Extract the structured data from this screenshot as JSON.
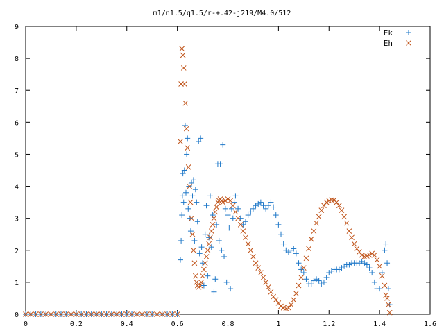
{
  "chart_data": {
    "type": "scatter",
    "title": "m1/n1.5/q1.5/r-+.42-j219/M4.0/512",
    "xlabel": "",
    "ylabel": "",
    "xlim": [
      0,
      1.6
    ],
    "ylim": [
      0,
      9
    ],
    "xticks": [
      "0",
      "0.2",
      "0.4",
      "0.6",
      "0.8",
      "1",
      "1.2",
      "1.4",
      "1.6"
    ],
    "yticks": [
      "0",
      "1",
      "2",
      "3",
      "4",
      "5",
      "6",
      "7",
      "8",
      "9"
    ],
    "grid": false,
    "legend_position": "top-right",
    "series": [
      {
        "name": "Ek",
        "marker": "plus",
        "color": "#1f78c8",
        "points": [
          [
            0.0,
            0
          ],
          [
            0.02,
            0
          ],
          [
            0.04,
            0
          ],
          [
            0.06,
            0
          ],
          [
            0.08,
            0
          ],
          [
            0.1,
            0
          ],
          [
            0.12,
            0
          ],
          [
            0.14,
            0
          ],
          [
            0.16,
            0
          ],
          [
            0.18,
            0
          ],
          [
            0.2,
            0
          ],
          [
            0.22,
            0
          ],
          [
            0.24,
            0
          ],
          [
            0.26,
            0
          ],
          [
            0.28,
            0
          ],
          [
            0.3,
            0
          ],
          [
            0.32,
            0
          ],
          [
            0.34,
            0
          ],
          [
            0.36,
            0
          ],
          [
            0.38,
            0
          ],
          [
            0.4,
            0
          ],
          [
            0.42,
            0
          ],
          [
            0.44,
            0
          ],
          [
            0.46,
            0
          ],
          [
            0.48,
            0
          ],
          [
            0.5,
            0
          ],
          [
            0.52,
            0
          ],
          [
            0.54,
            0
          ],
          [
            0.56,
            0
          ],
          [
            0.58,
            0
          ],
          [
            0.6,
            0
          ],
          [
            0.612,
            1.7
          ],
          [
            0.615,
            2.3
          ],
          [
            0.618,
            3.1
          ],
          [
            0.62,
            3.7
          ],
          [
            0.622,
            4.4
          ],
          [
            0.625,
            3.5
          ],
          [
            0.628,
            4.5
          ],
          [
            0.631,
            5.9
          ],
          [
            0.634,
            3.8
          ],
          [
            0.637,
            5.0
          ],
          [
            0.64,
            5.5
          ],
          [
            0.643,
            3.3
          ],
          [
            0.646,
            4.0
          ],
          [
            0.65,
            3.0
          ],
          [
            0.653,
            2.6
          ],
          [
            0.656,
            4.1
          ],
          [
            0.66,
            3.7
          ],
          [
            0.664,
            4.2
          ],
          [
            0.668,
            2.3
          ],
          [
            0.672,
            3.9
          ],
          [
            0.676,
            3.5
          ],
          [
            0.68,
            2.9
          ],
          [
            0.684,
            5.4
          ],
          [
            0.688,
            1.9
          ],
          [
            0.692,
            5.5
          ],
          [
            0.696,
            2.1
          ],
          [
            0.7,
            1.6
          ],
          [
            0.705,
            0.9
          ],
          [
            0.71,
            2.5
          ],
          [
            0.715,
            3.4
          ],
          [
            0.72,
            1.2
          ],
          [
            0.725,
            2.4
          ],
          [
            0.73,
            3.7
          ],
          [
            0.735,
            2.1
          ],
          [
            0.74,
            3.1
          ],
          [
            0.745,
            0.7
          ],
          [
            0.75,
            1.1
          ],
          [
            0.755,
            2.8
          ],
          [
            0.76,
            4.7
          ],
          [
            0.765,
            2.3
          ],
          [
            0.77,
            4.7
          ],
          [
            0.775,
            2.0
          ],
          [
            0.78,
            5.3
          ],
          [
            0.785,
            1.8
          ],
          [
            0.79,
            3.3
          ],
          [
            0.795,
            1.0
          ],
          [
            0.8,
            3.1
          ],
          [
            0.805,
            2.7
          ],
          [
            0.81,
            0.8
          ],
          [
            0.815,
            3.3
          ],
          [
            0.82,
            3.0
          ],
          [
            0.825,
            3.5
          ],
          [
            0.83,
            3.7
          ],
          [
            0.84,
            3.3
          ],
          [
            0.85,
            3.0
          ],
          [
            0.86,
            2.8
          ],
          [
            0.87,
            2.9
          ],
          [
            0.88,
            3.1
          ],
          [
            0.89,
            3.2
          ],
          [
            0.9,
            3.3
          ],
          [
            0.91,
            3.4
          ],
          [
            0.92,
            3.45
          ],
          [
            0.93,
            3.5
          ],
          [
            0.94,
            3.4
          ],
          [
            0.95,
            3.3
          ],
          [
            0.96,
            3.4
          ],
          [
            0.97,
            3.5
          ],
          [
            0.98,
            3.35
          ],
          [
            0.99,
            3.1
          ],
          [
            1.0,
            2.8
          ],
          [
            1.01,
            2.5
          ],
          [
            1.02,
            2.2
          ],
          [
            1.03,
            2.0
          ],
          [
            1.04,
            1.95
          ],
          [
            1.05,
            2.0
          ],
          [
            1.06,
            2.05
          ],
          [
            1.07,
            1.9
          ],
          [
            1.08,
            1.6
          ],
          [
            1.09,
            1.4
          ],
          [
            1.1,
            1.3
          ],
          [
            1.11,
            1.1
          ],
          [
            1.12,
            0.95
          ],
          [
            1.13,
            0.95
          ],
          [
            1.14,
            1.05
          ],
          [
            1.15,
            1.1
          ],
          [
            1.16,
            1.05
          ],
          [
            1.17,
            0.95
          ],
          [
            1.18,
            1.0
          ],
          [
            1.19,
            1.15
          ],
          [
            1.2,
            1.3
          ],
          [
            1.21,
            1.35
          ],
          [
            1.22,
            1.4
          ],
          [
            1.23,
            1.4
          ],
          [
            1.24,
            1.4
          ],
          [
            1.25,
            1.45
          ],
          [
            1.26,
            1.5
          ],
          [
            1.27,
            1.55
          ],
          [
            1.28,
            1.55
          ],
          [
            1.29,
            1.6
          ],
          [
            1.3,
            1.6
          ],
          [
            1.31,
            1.6
          ],
          [
            1.32,
            1.6
          ],
          [
            1.33,
            1.65
          ],
          [
            1.34,
            1.6
          ],
          [
            1.35,
            1.55
          ],
          [
            1.36,
            1.45
          ],
          [
            1.37,
            1.3
          ],
          [
            1.38,
            1.0
          ],
          [
            1.39,
            0.8
          ],
          [
            1.4,
            0.8
          ],
          [
            1.41,
            1.3
          ],
          [
            1.42,
            2.0
          ],
          [
            1.425,
            2.2
          ],
          [
            1.43,
            1.6
          ],
          [
            1.435,
            0.8
          ],
          [
            1.44,
            0.3
          ]
        ]
      },
      {
        "name": "Eh",
        "marker": "cross",
        "color": "#c0541a",
        "points": [
          [
            0.0,
            0
          ],
          [
            0.02,
            0
          ],
          [
            0.04,
            0
          ],
          [
            0.06,
            0
          ],
          [
            0.08,
            0
          ],
          [
            0.1,
            0
          ],
          [
            0.12,
            0
          ],
          [
            0.14,
            0
          ],
          [
            0.16,
            0
          ],
          [
            0.18,
            0
          ],
          [
            0.2,
            0
          ],
          [
            0.22,
            0
          ],
          [
            0.24,
            0
          ],
          [
            0.26,
            0
          ],
          [
            0.28,
            0
          ],
          [
            0.3,
            0
          ],
          [
            0.32,
            0
          ],
          [
            0.34,
            0
          ],
          [
            0.36,
            0
          ],
          [
            0.38,
            0
          ],
          [
            0.4,
            0
          ],
          [
            0.42,
            0
          ],
          [
            0.44,
            0
          ],
          [
            0.46,
            0
          ],
          [
            0.48,
            0
          ],
          [
            0.5,
            0
          ],
          [
            0.52,
            0
          ],
          [
            0.54,
            0
          ],
          [
            0.56,
            0
          ],
          [
            0.58,
            0
          ],
          [
            0.6,
            0
          ],
          [
            0.612,
            5.4
          ],
          [
            0.615,
            7.2
          ],
          [
            0.618,
            8.3
          ],
          [
            0.622,
            8.1
          ],
          [
            0.625,
            7.7
          ],
          [
            0.628,
            7.2
          ],
          [
            0.632,
            6.6
          ],
          [
            0.636,
            5.8
          ],
          [
            0.64,
            5.2
          ],
          [
            0.644,
            4.6
          ],
          [
            0.648,
            4.0
          ],
          [
            0.652,
            3.5
          ],
          [
            0.656,
            3.0
          ],
          [
            0.66,
            2.5
          ],
          [
            0.664,
            2.0
          ],
          [
            0.668,
            1.6
          ],
          [
            0.672,
            1.2
          ],
          [
            0.676,
            1.0
          ],
          [
            0.68,
            0.9
          ],
          [
            0.685,
            0.85
          ],
          [
            0.69,
            0.9
          ],
          [
            0.695,
            1.0
          ],
          [
            0.7,
            1.2
          ],
          [
            0.705,
            1.4
          ],
          [
            0.71,
            1.6
          ],
          [
            0.715,
            1.8
          ],
          [
            0.72,
            2.0
          ],
          [
            0.725,
            2.2
          ],
          [
            0.73,
            2.4
          ],
          [
            0.735,
            2.6
          ],
          [
            0.74,
            2.8
          ],
          [
            0.745,
            3.0
          ],
          [
            0.75,
            3.2
          ],
          [
            0.755,
            3.35
          ],
          [
            0.76,
            3.5
          ],
          [
            0.765,
            3.55
          ],
          [
            0.77,
            3.6
          ],
          [
            0.775,
            3.55
          ],
          [
            0.78,
            3.5
          ],
          [
            0.79,
            3.55
          ],
          [
            0.8,
            3.6
          ],
          [
            0.81,
            3.55
          ],
          [
            0.82,
            3.4
          ],
          [
            0.83,
            3.2
          ],
          [
            0.84,
            3.0
          ],
          [
            0.85,
            2.8
          ],
          [
            0.86,
            2.6
          ],
          [
            0.87,
            2.4
          ],
          [
            0.88,
            2.2
          ],
          [
            0.89,
            2.0
          ],
          [
            0.9,
            1.8
          ],
          [
            0.91,
            1.6
          ],
          [
            0.92,
            1.45
          ],
          [
            0.93,
            1.3
          ],
          [
            0.94,
            1.15
          ],
          [
            0.95,
            1.0
          ],
          [
            0.96,
            0.85
          ],
          [
            0.97,
            0.7
          ],
          [
            0.98,
            0.55
          ],
          [
            0.99,
            0.45
          ],
          [
            1.0,
            0.35
          ],
          [
            1.01,
            0.25
          ],
          [
            1.02,
            0.2
          ],
          [
            1.03,
            0.18
          ],
          [
            1.04,
            0.2
          ],
          [
            1.05,
            0.3
          ],
          [
            1.06,
            0.45
          ],
          [
            1.07,
            0.65
          ],
          [
            1.08,
            0.9
          ],
          [
            1.09,
            1.15
          ],
          [
            1.1,
            1.45
          ],
          [
            1.11,
            1.75
          ],
          [
            1.12,
            2.05
          ],
          [
            1.13,
            2.35
          ],
          [
            1.14,
            2.6
          ],
          [
            1.15,
            2.85
          ],
          [
            1.16,
            3.05
          ],
          [
            1.17,
            3.25
          ],
          [
            1.18,
            3.4
          ],
          [
            1.19,
            3.5
          ],
          [
            1.2,
            3.55
          ],
          [
            1.21,
            3.57
          ],
          [
            1.22,
            3.57
          ],
          [
            1.23,
            3.5
          ],
          [
            1.24,
            3.4
          ],
          [
            1.25,
            3.25
          ],
          [
            1.26,
            3.05
          ],
          [
            1.27,
            2.85
          ],
          [
            1.28,
            2.6
          ],
          [
            1.29,
            2.4
          ],
          [
            1.3,
            2.2
          ],
          [
            1.31,
            2.05
          ],
          [
            1.32,
            1.95
          ],
          [
            1.33,
            1.85
          ],
          [
            1.34,
            1.8
          ],
          [
            1.35,
            1.82
          ],
          [
            1.36,
            1.85
          ],
          [
            1.37,
            1.9
          ],
          [
            1.38,
            1.85
          ],
          [
            1.39,
            1.7
          ],
          [
            1.4,
            1.5
          ],
          [
            1.41,
            1.2
          ],
          [
            1.42,
            0.9
          ],
          [
            1.425,
            0.6
          ],
          [
            1.43,
            0.5
          ],
          [
            1.435,
            0.3
          ],
          [
            1.44,
            0.05
          ]
        ]
      }
    ]
  }
}
